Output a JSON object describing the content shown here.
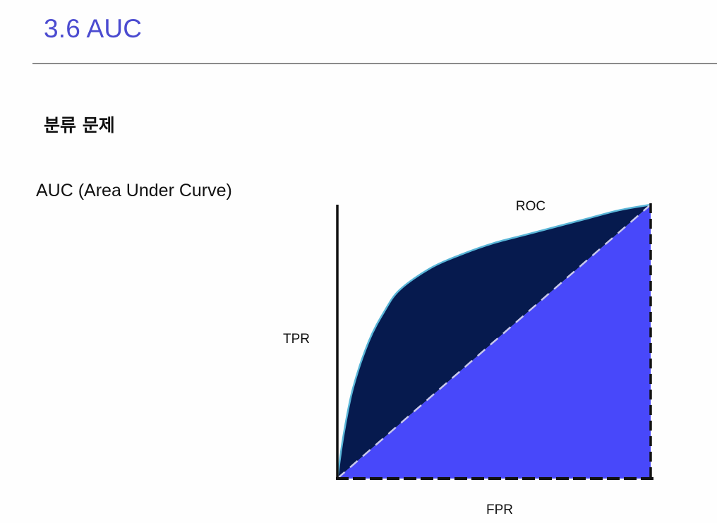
{
  "slide": {
    "title": "3.6 AUC",
    "section_heading": "분류 문제",
    "auc_label": "AUC (Area Under Curve)"
  },
  "chart_data": {
    "type": "area",
    "curve_label": "ROC",
    "xlabel": "FPR",
    "ylabel": "TPR",
    "xlim": [
      0,
      1
    ],
    "ylim": [
      0,
      1
    ],
    "grid": false,
    "series": [
      {
        "x": [
          0,
          0.02,
          0.05,
          0.1,
          0.15,
          0.2,
          0.3,
          0.4,
          0.5,
          0.6,
          0.7,
          0.8,
          0.9,
          1.0
        ],
        "y": [
          0,
          0.16,
          0.33,
          0.5,
          0.61,
          0.69,
          0.77,
          0.82,
          0.86,
          0.89,
          0.92,
          0.95,
          0.98,
          1.0
        ]
      },
      {
        "x": [
          0,
          1
        ],
        "y": [
          0,
          1
        ]
      }
    ],
    "colors": {
      "area_above_diagonal": "#061a4e",
      "area_below_diagonal": "#4848fa",
      "curve_stroke": "#5ab6d8",
      "diagonal_stroke": "#c8c8ec",
      "axis": "#111111"
    }
  }
}
